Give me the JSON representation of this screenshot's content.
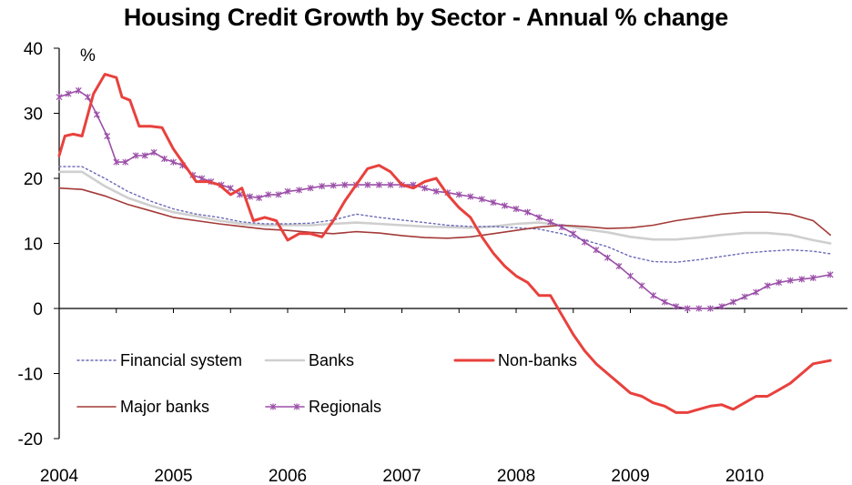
{
  "chart_data": {
    "type": "line",
    "title": "Housing Credit Growth by Sector - Annual % change",
    "ylabel": "%",
    "xlabel": "",
    "ylim": [
      -20,
      40
    ],
    "xlim": [
      2004.0,
      2010.9
    ],
    "y_ticks": [
      "40",
      "30",
      "20",
      "10",
      "0",
      "-10",
      "-20"
    ],
    "x_tick_labels": [
      "2004",
      "2005",
      "2006",
      "2007",
      "2008",
      "2009",
      "2010"
    ],
    "grid": false,
    "legend_position": "bottom-left inside plot",
    "series": [
      {
        "name": "Financial system",
        "color": "#6a6ab8",
        "style": "dotted",
        "x": [
          2004.0,
          2004.2,
          2004.4,
          2004.6,
          2004.8,
          2005.0,
          2005.2,
          2005.4,
          2005.6,
          2005.8,
          2006.0,
          2006.2,
          2006.4,
          2006.6,
          2006.8,
          2007.0,
          2007.2,
          2007.4,
          2007.6,
          2007.8,
          2008.0,
          2008.2,
          2008.4,
          2008.6,
          2008.8,
          2009.0,
          2009.2,
          2009.4,
          2009.6,
          2009.8,
          2010.0,
          2010.2,
          2010.4,
          2010.6,
          2010.75
        ],
        "y": [
          21.8,
          21.8,
          20.0,
          18.0,
          16.5,
          15.3,
          14.5,
          14.0,
          13.3,
          13.0,
          13.0,
          13.1,
          13.6,
          14.5,
          14.0,
          13.6,
          13.2,
          12.8,
          12.6,
          12.6,
          12.4,
          12.2,
          11.5,
          10.5,
          9.5,
          8.0,
          7.2,
          7.1,
          7.5,
          8.0,
          8.5,
          8.8,
          9.0,
          8.8,
          8.4
        ]
      },
      {
        "name": "Banks",
        "color": "#cfcfcf",
        "style": "solid",
        "x": [
          2004.0,
          2004.2,
          2004.4,
          2004.6,
          2004.8,
          2005.0,
          2005.2,
          2005.4,
          2005.6,
          2005.8,
          2006.0,
          2006.2,
          2006.4,
          2006.6,
          2006.8,
          2007.0,
          2007.2,
          2007.4,
          2007.6,
          2007.8,
          2008.0,
          2008.2,
          2008.4,
          2008.6,
          2008.8,
          2009.0,
          2009.2,
          2009.4,
          2009.6,
          2009.8,
          2010.0,
          2010.2,
          2010.4,
          2010.6,
          2010.75
        ],
        "y": [
          21.0,
          21.0,
          18.8,
          17.0,
          15.8,
          14.8,
          14.2,
          13.5,
          13.0,
          12.8,
          12.8,
          12.8,
          13.0,
          13.2,
          13.0,
          12.8,
          12.6,
          12.5,
          12.4,
          12.6,
          13.0,
          13.2,
          12.8,
          12.2,
          11.7,
          11.0,
          10.6,
          10.6,
          10.9,
          11.3,
          11.6,
          11.6,
          11.3,
          10.5,
          10.0
        ]
      },
      {
        "name": "Non-banks",
        "color": "#e8413d",
        "style": "solid",
        "x": [
          2004.0,
          2004.05,
          2004.12,
          2004.2,
          2004.3,
          2004.4,
          2004.5,
          2004.55,
          2004.62,
          2004.7,
          2004.8,
          2004.9,
          2005.0,
          2005.1,
          2005.2,
          2005.3,
          2005.4,
          2005.5,
          2005.6,
          2005.7,
          2005.8,
          2005.9,
          2006.0,
          2006.1,
          2006.2,
          2006.3,
          2006.4,
          2006.5,
          2006.6,
          2006.7,
          2006.8,
          2006.9,
          2007.0,
          2007.1,
          2007.2,
          2007.3,
          2007.4,
          2007.5,
          2007.6,
          2007.7,
          2007.8,
          2007.9,
          2008.0,
          2008.1,
          2008.2,
          2008.3,
          2008.4,
          2008.5,
          2008.6,
          2008.7,
          2008.8,
          2008.9,
          2009.0,
          2009.1,
          2009.2,
          2009.3,
          2009.4,
          2009.5,
          2009.6,
          2009.7,
          2009.8,
          2009.9,
          2010.0,
          2010.1,
          2010.2,
          2010.3,
          2010.4,
          2010.5,
          2010.6,
          2010.75
        ],
        "y": [
          23.5,
          26.5,
          26.8,
          26.5,
          33.0,
          36.0,
          35.5,
          32.5,
          32.0,
          28.0,
          28.0,
          27.8,
          24.5,
          22.0,
          19.5,
          19.5,
          19.0,
          17.5,
          18.5,
          13.5,
          14.0,
          13.5,
          10.5,
          11.5,
          11.5,
          11.0,
          13.5,
          16.5,
          19.0,
          21.5,
          22.0,
          21.0,
          19.0,
          18.5,
          19.5,
          20.0,
          17.5,
          15.5,
          14.0,
          11.0,
          8.5,
          6.5,
          5.0,
          4.0,
          2.0,
          2.0,
          -1.0,
          -4.0,
          -6.5,
          -8.5,
          -10.0,
          -11.5,
          -13.0,
          -13.5,
          -14.5,
          -15.0,
          -16.0,
          -16.0,
          -15.5,
          -15.0,
          -14.8,
          -15.5,
          -14.5,
          -13.5,
          -13.5,
          -12.5,
          -11.5,
          -10.0,
          -8.5,
          -8.0
        ]
      },
      {
        "name": "Major banks",
        "color": "#a33a38",
        "style": "solid",
        "x": [
          2004.0,
          2004.2,
          2004.4,
          2004.6,
          2004.8,
          2005.0,
          2005.2,
          2005.4,
          2005.6,
          2005.8,
          2006.0,
          2006.2,
          2006.4,
          2006.6,
          2006.8,
          2007.0,
          2007.2,
          2007.4,
          2007.6,
          2007.8,
          2008.0,
          2008.2,
          2008.4,
          2008.6,
          2008.8,
          2009.0,
          2009.2,
          2009.4,
          2009.6,
          2009.8,
          2010.0,
          2010.2,
          2010.4,
          2010.6,
          2010.75
        ],
        "y": [
          18.5,
          18.3,
          17.3,
          16.0,
          15.0,
          14.0,
          13.5,
          13.0,
          12.6,
          12.2,
          12.0,
          11.7,
          11.5,
          11.8,
          11.6,
          11.2,
          10.9,
          10.8,
          11.0,
          11.5,
          12.0,
          12.5,
          12.8,
          12.6,
          12.3,
          12.4,
          12.8,
          13.5,
          14.0,
          14.5,
          14.8,
          14.8,
          14.5,
          13.5,
          11.3
        ]
      },
      {
        "name": "Regionals",
        "color": "#9b4fa8",
        "style": "solid-star",
        "x": [
          2004.0,
          2004.08,
          2004.17,
          2004.25,
          2004.33,
          2004.42,
          2004.5,
          2004.58,
          2004.67,
          2004.75,
          2004.83,
          2004.92,
          2005.0,
          2005.08,
          2005.17,
          2005.25,
          2005.33,
          2005.42,
          2005.5,
          2005.58,
          2005.67,
          2005.75,
          2005.83,
          2005.92,
          2006.0,
          2006.1,
          2006.2,
          2006.3,
          2006.4,
          2006.5,
          2006.6,
          2006.7,
          2006.8,
          2006.9,
          2007.0,
          2007.1,
          2007.2,
          2007.3,
          2007.4,
          2007.5,
          2007.6,
          2007.7,
          2007.8,
          2007.9,
          2008.0,
          2008.1,
          2008.2,
          2008.3,
          2008.4,
          2008.5,
          2008.6,
          2008.7,
          2008.8,
          2008.9,
          2009.0,
          2009.1,
          2009.2,
          2009.3,
          2009.4,
          2009.5,
          2009.6,
          2009.7,
          2009.8,
          2009.9,
          2010.0,
          2010.1,
          2010.2,
          2010.3,
          2010.4,
          2010.5,
          2010.6,
          2010.75
        ],
        "y": [
          32.5,
          33.0,
          33.5,
          32.5,
          29.8,
          26.5,
          22.5,
          22.5,
          23.5,
          23.5,
          24.0,
          23.0,
          22.5,
          22.0,
          20.5,
          20.0,
          19.5,
          19.0,
          18.5,
          17.5,
          17.2,
          17.0,
          17.5,
          17.5,
          18.0,
          18.2,
          18.5,
          18.8,
          18.9,
          19.0,
          19.0,
          19.0,
          19.0,
          19.0,
          19.0,
          19.0,
          18.5,
          18.0,
          17.8,
          17.5,
          17.2,
          16.8,
          16.3,
          15.8,
          15.3,
          14.8,
          14.0,
          13.3,
          12.5,
          11.5,
          10.2,
          9.0,
          7.8,
          6.5,
          5.0,
          3.5,
          2.0,
          1.0,
          0.3,
          0.0,
          0.0,
          0.0,
          0.3,
          1.0,
          1.8,
          2.5,
          3.5,
          4.0,
          4.3,
          4.5,
          4.7,
          5.2
        ]
      }
    ]
  }
}
